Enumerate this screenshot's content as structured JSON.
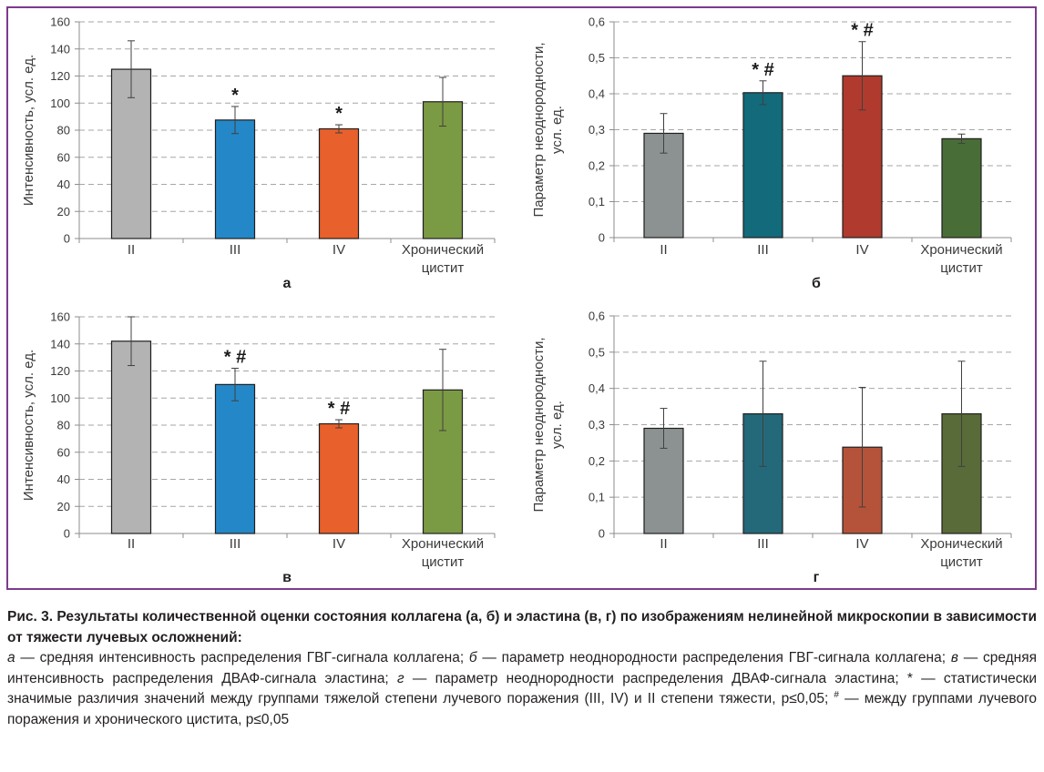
{
  "chart_data": [
    {
      "type": "bar",
      "panel_label": "а",
      "ylabel": "Интенсивность, усл. ед.",
      "categories": [
        "II",
        "III",
        "IV",
        "Хронический цистит"
      ],
      "values": [
        125,
        87.5,
        81,
        101
      ],
      "errors": [
        21,
        10,
        3,
        18
      ],
      "markers": [
        "",
        "*",
        "*",
        ""
      ],
      "colors": [
        "#b3b3b3",
        "#2488c8",
        "#e8602c",
        "#7b9a44"
      ],
      "ylim": [
        0,
        160
      ],
      "yticks": [
        "0",
        "20",
        "40",
        "60",
        "80",
        "100",
        "120",
        "140",
        "160"
      ],
      "grid": true
    },
    {
      "type": "bar",
      "panel_label": "б",
      "ylabel_lines": [
        "Параметр неоднородности,",
        "усл. ед."
      ],
      "categories": [
        "II",
        "III",
        "IV",
        "Хронический цистит"
      ],
      "values": [
        0.29,
        0.403,
        0.45,
        0.275
      ],
      "errors": [
        0.055,
        0.033,
        0.095,
        0.013
      ],
      "markers": [
        "",
        "* #",
        "* #",
        ""
      ],
      "colors": [
        "#8c9191",
        "#136a7a",
        "#b03a2e",
        "#496d37"
      ],
      "ylim": [
        0,
        0.6
      ],
      "yticks": [
        "0",
        "0,1",
        "0,2",
        "0,3",
        "0,4",
        "0,5",
        "0,6"
      ],
      "grid": true
    },
    {
      "type": "bar",
      "panel_label": "в",
      "ylabel": "Интенсивность, усл. ед.",
      "categories": [
        "II",
        "III",
        "IV",
        "Хронический цистит"
      ],
      "values": [
        142,
        110,
        81,
        106
      ],
      "errors": [
        18,
        12,
        3,
        30
      ],
      "markers": [
        "",
        "* #",
        "* #",
        ""
      ],
      "colors": [
        "#b3b3b3",
        "#2488c8",
        "#e8602c",
        "#7b9a44"
      ],
      "ylim": [
        0,
        160
      ],
      "yticks": [
        "0",
        "20",
        "40",
        "60",
        "80",
        "100",
        "120",
        "140",
        "160"
      ],
      "grid": true
    },
    {
      "type": "bar",
      "panel_label": "г",
      "ylabel_lines": [
        "Параметр неоднородности,",
        "усл. ед."
      ],
      "categories": [
        "II",
        "III",
        "IV",
        "Хронический цистит"
      ],
      "values": [
        0.29,
        0.33,
        0.238,
        0.33
      ],
      "errors": [
        0.055,
        0.145,
        0.165,
        0.145
      ],
      "markers": [
        "",
        "",
        "",
        ""
      ],
      "colors": [
        "#8c9191",
        "#24697a",
        "#b5533a",
        "#596b38"
      ],
      "ylim": [
        0,
        0.6
      ],
      "yticks": [
        "0",
        "0,1",
        "0,2",
        "0,3",
        "0,4",
        "0,5",
        "0,6"
      ],
      "grid": true
    }
  ],
  "caption": {
    "title": "Рис. 3. Результаты количественной оценки состояния коллагена (а, б) и эластина (в, г) по изображениям нелинейной микроскопии в зависимости от тяжести лучевых осложнений:",
    "l_a": "а",
    "t_a": " — средняя интенсивность распределения ГВГ-сигнала коллагена; ",
    "l_b": "б",
    "t_b": " — параметр неоднородности распределения ГВГ-сигнала коллагена; ",
    "l_v": "в",
    "t_v": " — средняя интенсивность распределения ДВАФ-сигнала эластина; ",
    "l_g": "г",
    "t_g": " — параметр неоднородности распределения ДВАФ-сигнала эластина; * — статистически значимые различия значений между группами тяжелой степени лучевого поражения (III, IV) и II степени тяжести, p≤0,05; ",
    "hash": "#",
    "t_end": " — между группами лучевого поражения и хронического цистита, p≤0,05"
  }
}
